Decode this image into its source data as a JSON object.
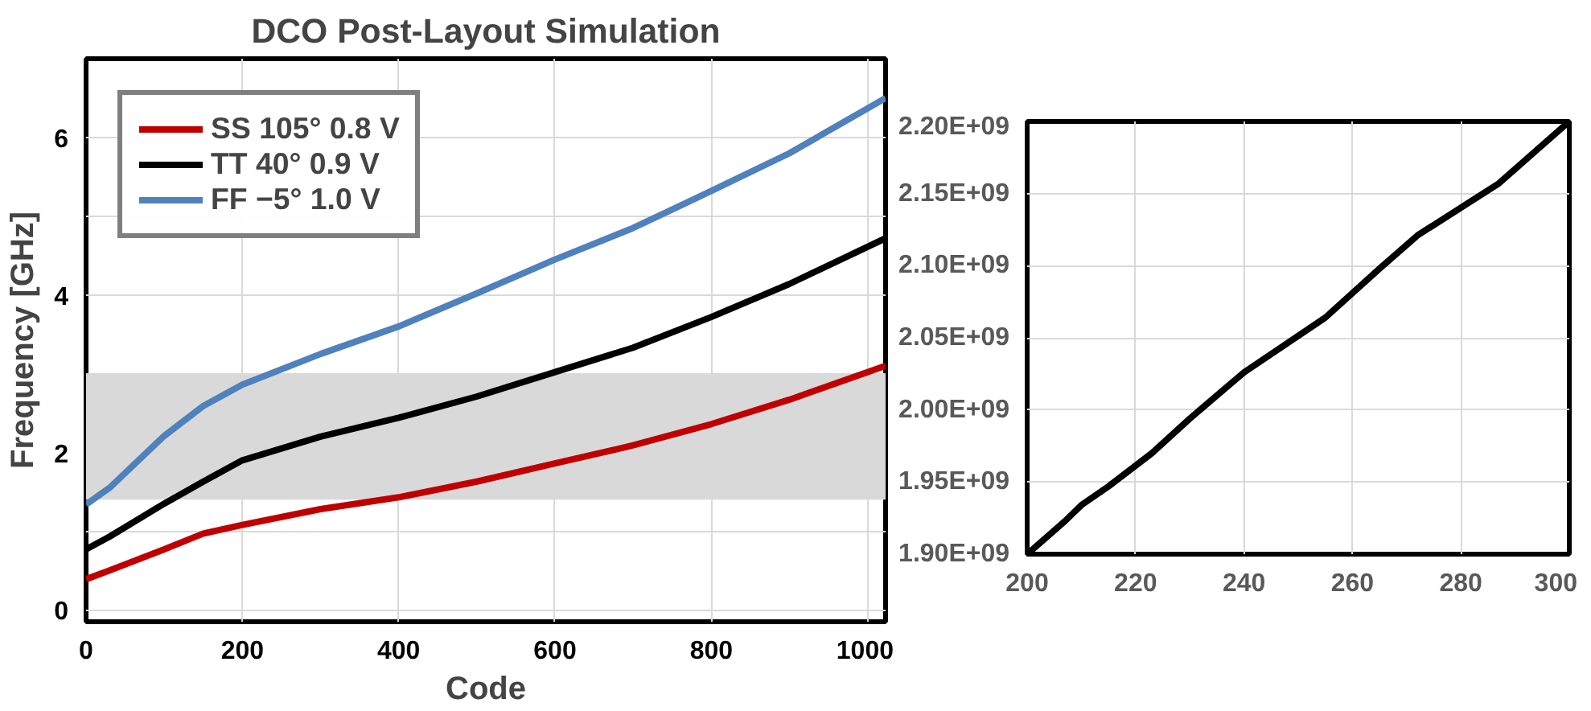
{
  "chart_data": [
    {
      "type": "line",
      "title": "DCO Post-Layout Simulation",
      "xlabel": "Code",
      "ylabel": "Frequency [GHz]",
      "x": [
        0,
        30,
        100,
        150,
        200,
        300,
        400,
        500,
        600,
        700,
        800,
        900,
        1023
      ],
      "series": [
        {
          "name": "SS 105° 0.8 V",
          "color": "#c00000",
          "values": [
            0.39,
            0.5,
            0.77,
            0.97,
            1.08,
            1.28,
            1.43,
            1.63,
            1.86,
            2.09,
            2.36,
            2.67,
            3.1
          ]
        },
        {
          "name": "TT 40° 0.9 V",
          "color": "#000000",
          "values": [
            0.77,
            0.93,
            1.35,
            1.63,
            1.9,
            2.2,
            2.44,
            2.71,
            3.02,
            3.33,
            3.72,
            4.14,
            4.72
          ]
        },
        {
          "name": "FF −5° 1.0 V",
          "color": "#4f81bd",
          "values": [
            1.34,
            1.55,
            2.21,
            2.59,
            2.86,
            3.25,
            3.6,
            4.02,
            4.45,
            4.85,
            5.32,
            5.8,
            6.5
          ]
        }
      ],
      "xlim": [
        0,
        1023
      ],
      "ylim": [
        -0.15,
        7
      ],
      "xticks": [
        0,
        200,
        400,
        600,
        800,
        1000
      ],
      "yticks": [
        0,
        {
          "value": 1,
          "label": null
        },
        2,
        {
          "value": 3,
          "label": null
        },
        4,
        {
          "value": 5,
          "label": null
        },
        6
      ],
      "bands": [
        {
          "axis": "y",
          "from": 1.4,
          "to": 3.0,
          "color": "#d9d9d9"
        }
      ],
      "grid": true,
      "legend": "top left"
    },
    {
      "type": "line",
      "x": [
        200,
        207,
        210,
        215,
        223,
        230,
        240,
        255,
        265,
        272,
        287,
        300
      ],
      "series": [
        {
          "color": "#000000",
          "values": [
            1900000000,
            1923000000,
            1934000000,
            1947000000,
            1970000000,
            1994000000,
            2026000000,
            2064000000,
            2098000000,
            2121000000,
            2157000000,
            2200000000
          ]
        }
      ],
      "xlim": [
        200,
        300
      ],
      "ylim": [
        1900000000,
        2200000000
      ],
      "xticks": [
        200,
        220,
        240,
        260,
        280,
        300
      ],
      "yticks": [
        {
          "value": 1900000000,
          "label": "1.90E+09"
        },
        {
          "value": 1950000000,
          "label": "1.95E+09"
        },
        {
          "value": 2000000000,
          "label": "2.00E+09"
        },
        {
          "value": 2050000000,
          "label": "2.05E+09"
        },
        {
          "value": 2100000000,
          "label": "2.10E+09"
        },
        {
          "value": 2150000000,
          "label": "2.15E+09"
        },
        {
          "value": 2200000000,
          "label": "2.20E+09"
        }
      ],
      "grid": true
    }
  ]
}
